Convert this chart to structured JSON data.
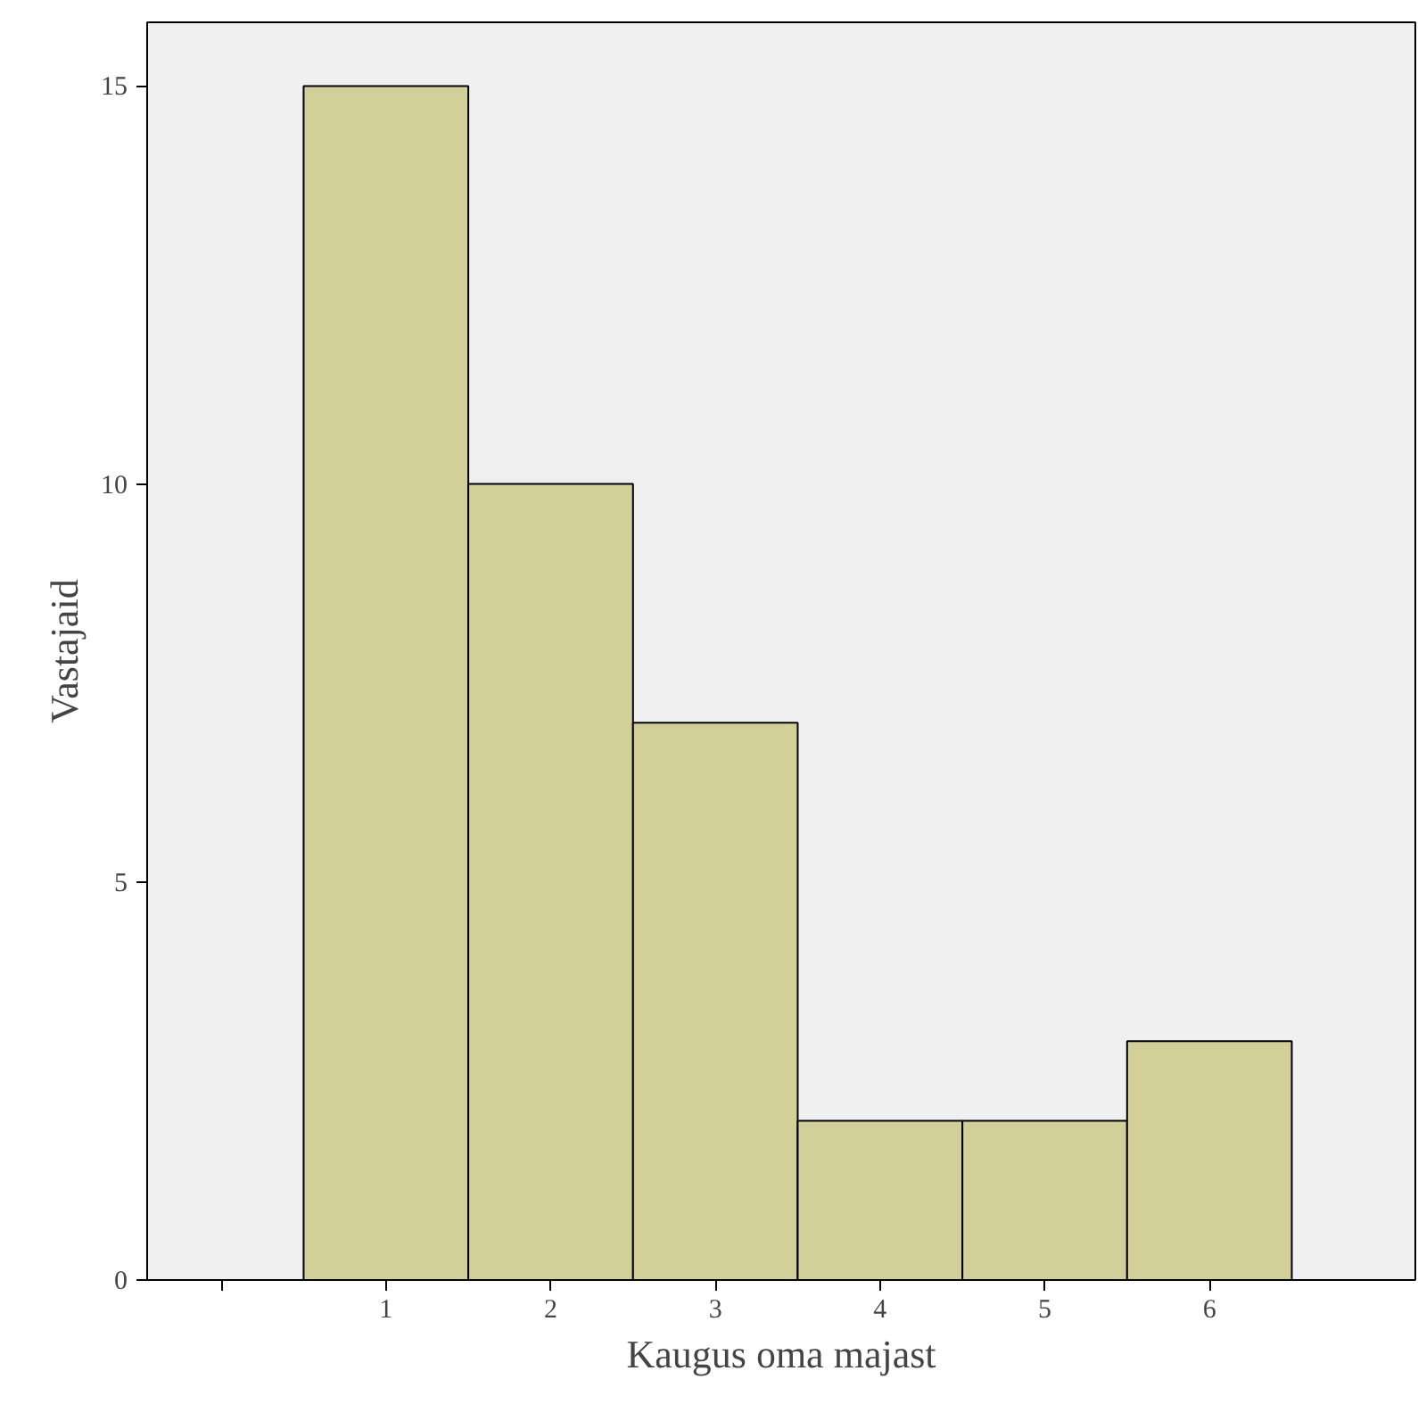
{
  "chart_data": {
    "type": "histogram",
    "xlabel": "Kaugus oma majast",
    "ylabel": "Vastajaid",
    "bins": [
      0.5,
      1.5,
      2.5,
      3.5,
      4.5,
      5.5,
      6.5
    ],
    "values": [
      15,
      10,
      7,
      2,
      2,
      3
    ],
    "color": "#d3cf98",
    "xlim": [
      -0.45,
      7.25
    ],
    "xticks": [
      {
        "value": 0,
        "label": null
      },
      1,
      2,
      3,
      4,
      5,
      6
    ],
    "ylim": [
      0,
      15.8
    ],
    "yticks": [
      0,
      5,
      10,
      15
    ],
    "grid": false
  }
}
